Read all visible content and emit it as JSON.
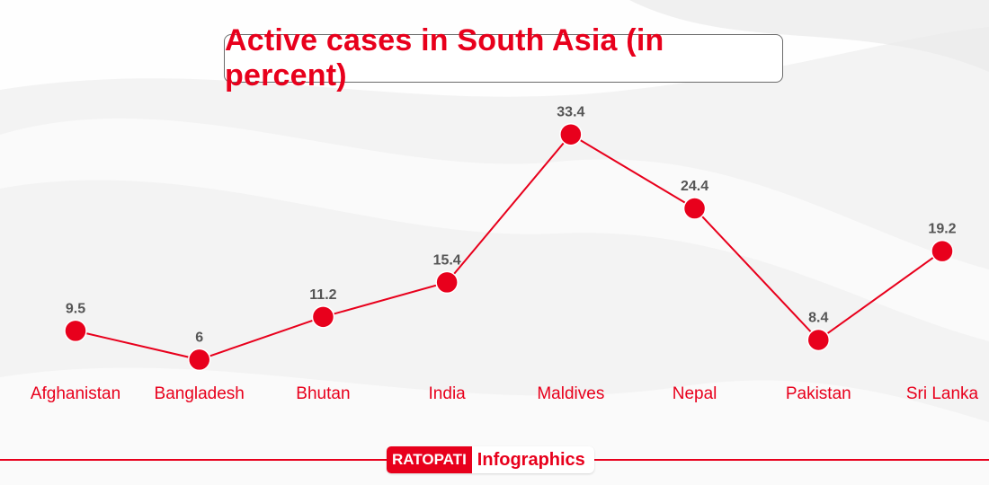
{
  "chart_data": {
    "type": "line",
    "title": "Active cases in South Asia (in percent)",
    "categories": [
      "Afghanistan",
      "Bangladesh",
      "Bhutan",
      "India",
      "Maldives",
      "Nepal",
      "Pakistan",
      "Sri Lanka"
    ],
    "values": [
      9.5,
      6,
      11.2,
      15.4,
      33.4,
      24.4,
      8.4,
      19.2
    ],
    "value_labels": [
      "9.5",
      "6",
      "11.2",
      "15.4",
      "33.4",
      "24.4",
      "8.4",
      "19.2"
    ],
    "xlabel": "",
    "ylabel": "",
    "grid": false
  },
  "colors": {
    "accent": "#e8001c",
    "label": "#555555"
  },
  "footer": {
    "brand_primary": "RATOPATI",
    "brand_secondary": "Infographics"
  }
}
